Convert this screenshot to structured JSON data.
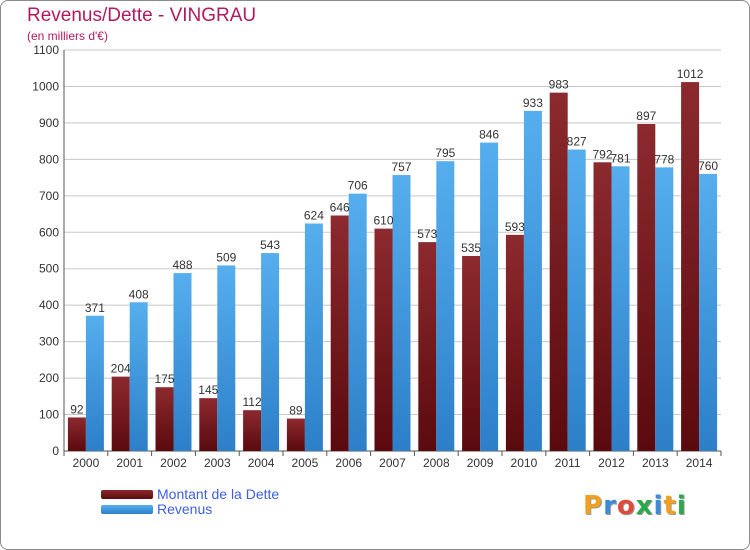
{
  "header": {
    "title": "Revenus/Dette - VINGRAU",
    "subtitle": "(en milliers d'€)"
  },
  "chart_data": {
    "type": "bar",
    "categories": [
      "2000",
      "2001",
      "2002",
      "2003",
      "2004",
      "2005",
      "2006",
      "2007",
      "2008",
      "2009",
      "2010",
      "2011",
      "2012",
      "2013",
      "2014"
    ],
    "series": [
      {
        "name": "Montant de la Dette",
        "color": "#7a1e22",
        "values": [
          92,
          204,
          175,
          145,
          112,
          89,
          646,
          610,
          573,
          535,
          593,
          983,
          792,
          897,
          1012
        ]
      },
      {
        "name": "Revenus",
        "color": "#3c97e0",
        "values": [
          371,
          408,
          488,
          509,
          543,
          624,
          706,
          757,
          795,
          846,
          933,
          827,
          781,
          778,
          760
        ]
      }
    ],
    "ylim": [
      0,
      1100
    ],
    "yticks": [
      0,
      100,
      200,
      300,
      400,
      500,
      600,
      700,
      800,
      900,
      1000,
      1100
    ],
    "grid": true,
    "legend_position": "bottom-left"
  },
  "logo": {
    "letters": [
      "P",
      "r",
      "o",
      "x",
      "i",
      "t",
      "i"
    ],
    "colors": [
      "#f0a020",
      "#3c8ad8",
      "#e04a3a",
      "#2aa84a",
      "#3c8ad8",
      "#f0a020",
      "#2aa84a"
    ]
  }
}
